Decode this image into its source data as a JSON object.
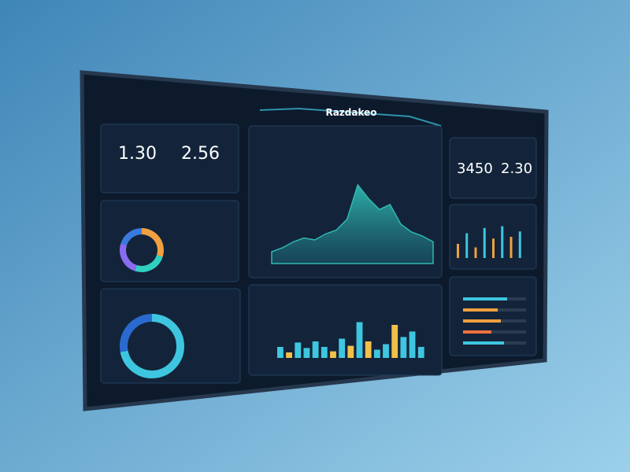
{
  "header": {
    "title": "Razdakeo"
  },
  "stats": [
    "1.30",
    "2.56",
    "3450",
    "2.30"
  ],
  "area_chart": {
    "color": "#2fb8b0",
    "values": [
      12,
      16,
      22,
      26,
      24,
      30,
      34,
      45,
      80,
      66,
      55,
      60,
      40,
      32,
      28,
      22
    ]
  },
  "bar_chart": {
    "values": [
      20,
      10,
      28,
      18,
      30,
      20,
      12,
      35,
      22,
      65,
      30,
      15,
      25,
      60,
      38,
      48,
      20
    ],
    "colors": [
      "#3ec6e0",
      "#f0c04a",
      "#3ec6e0",
      "#3ec6e0",
      "#3ec6e0",
      "#3ec6e0",
      "#f0c04a",
      "#3ec6e0",
      "#f0c04a",
      "#3ec6e0",
      "#f0c04a",
      "#3ec6e0",
      "#3ec6e0",
      "#f0c04a",
      "#3ec6e0",
      "#3ec6e0",
      "#3ec6e0"
    ]
  },
  "mini_bars": {
    "values": [
      40,
      70,
      30,
      85,
      55,
      90,
      60,
      75
    ],
    "colors": [
      "#f0a040",
      "#3ec6e0",
      "#f0a040",
      "#3ec6e0",
      "#f0a040",
      "#3ec6e0",
      "#f0a040",
      "#3ec6e0"
    ]
  },
  "progress": {
    "values": [
      70,
      55,
      60,
      45,
      65
    ],
    "colors": [
      "#3ec6e0",
      "#f0a040",
      "#f0a040",
      "#f07040",
      "#3ec6e0"
    ]
  },
  "donut_small": {
    "values": [
      30,
      25,
      25,
      20
    ],
    "colors": [
      "#f0a040",
      "#2fd0c0",
      "#8a6cf0",
      "#3a7ae0"
    ]
  },
  "donut_large": {
    "values": [
      72,
      28
    ],
    "colors": [
      "#3ec6e0",
      "#2a6ad0"
    ]
  }
}
